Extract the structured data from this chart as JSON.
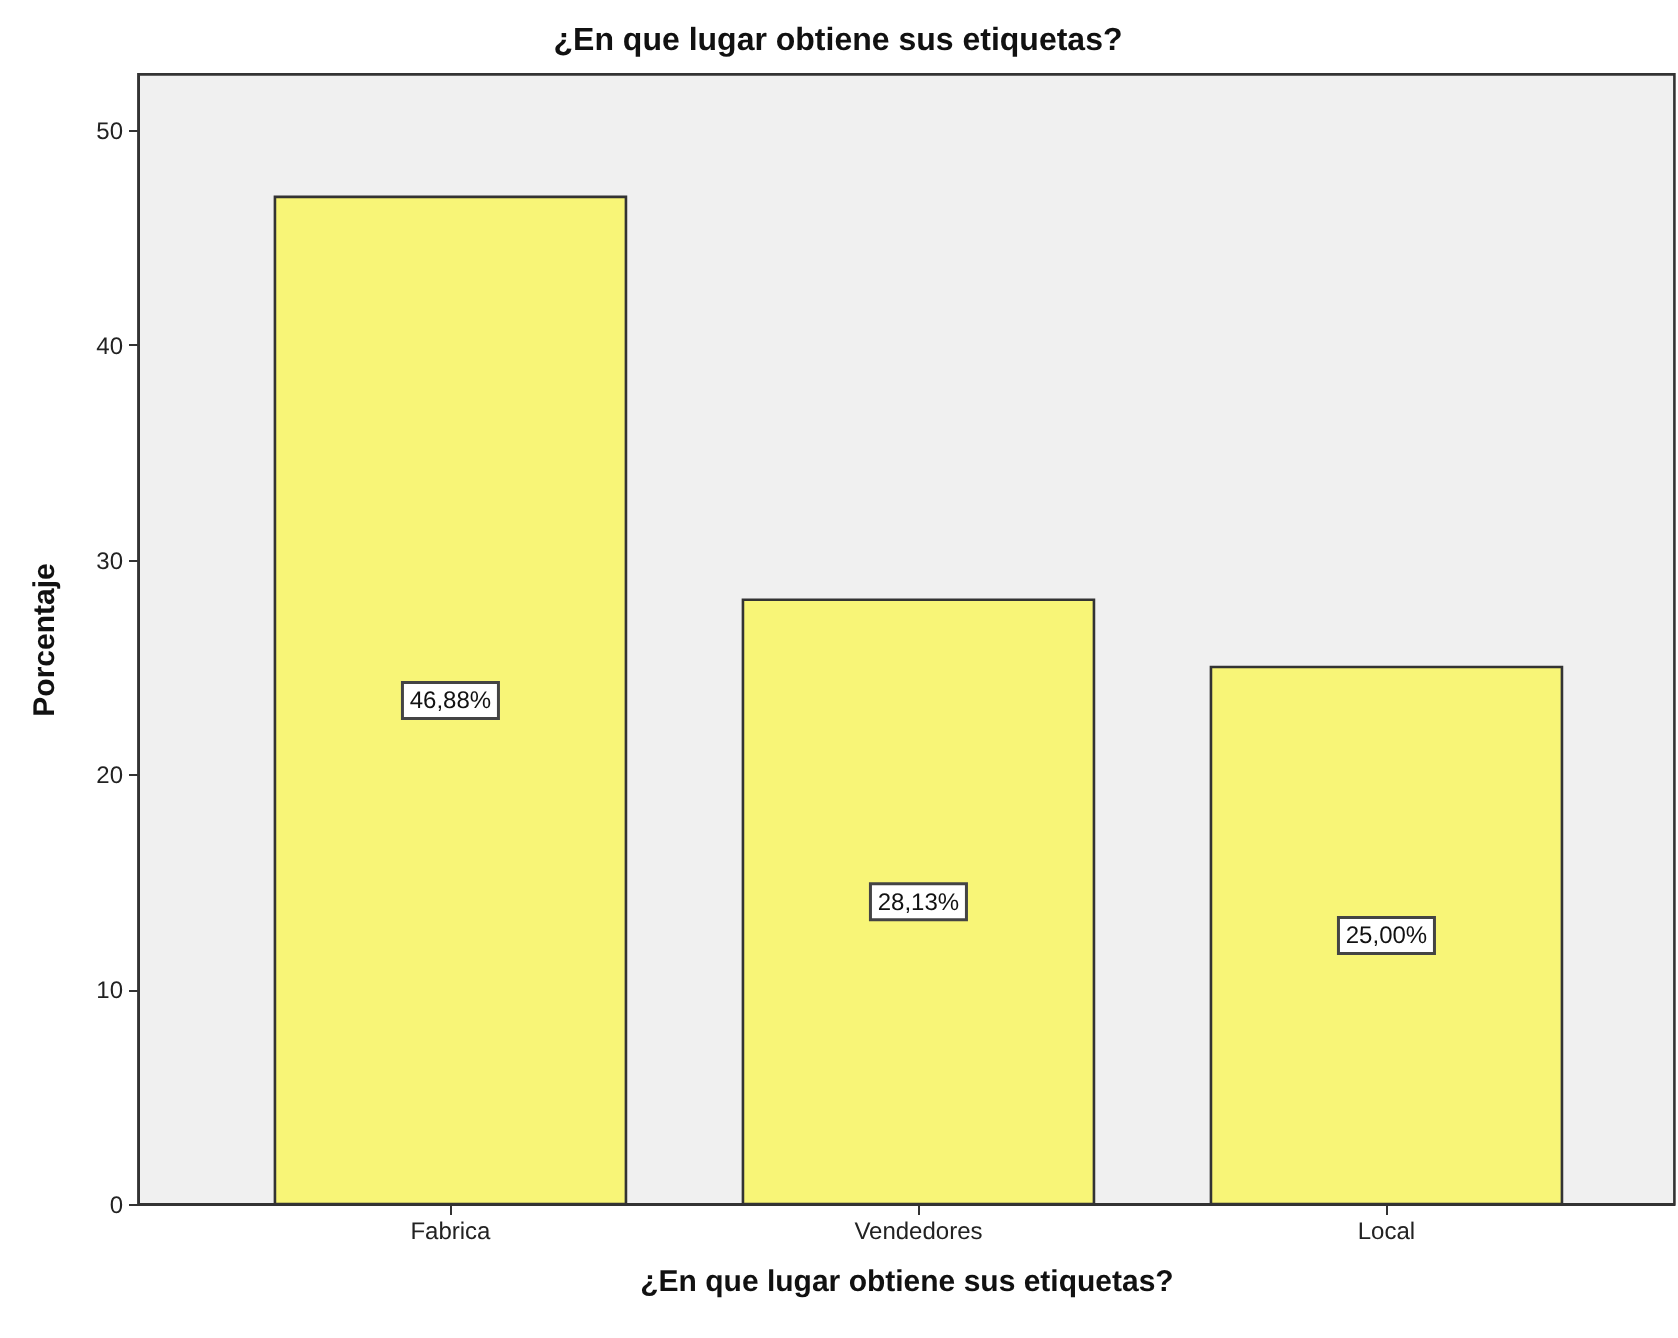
{
  "chart_data": {
    "type": "bar",
    "title": "¿En que lugar obtiene sus etiquetas?",
    "xlabel": "¿En que lugar obtiene sus etiquetas?",
    "ylabel": "Porcentaje",
    "categories": [
      "Fabrica",
      "Vendedores",
      "Local"
    ],
    "values": [
      46.88,
      28.13,
      25.0
    ],
    "value_labels": [
      "46,88%",
      "28,13%",
      "25,00%"
    ],
    "color": "#f8f577",
    "ylim": [
      0,
      52.6
    ],
    "yticks": [
      0,
      10,
      20,
      30,
      40,
      50
    ]
  }
}
